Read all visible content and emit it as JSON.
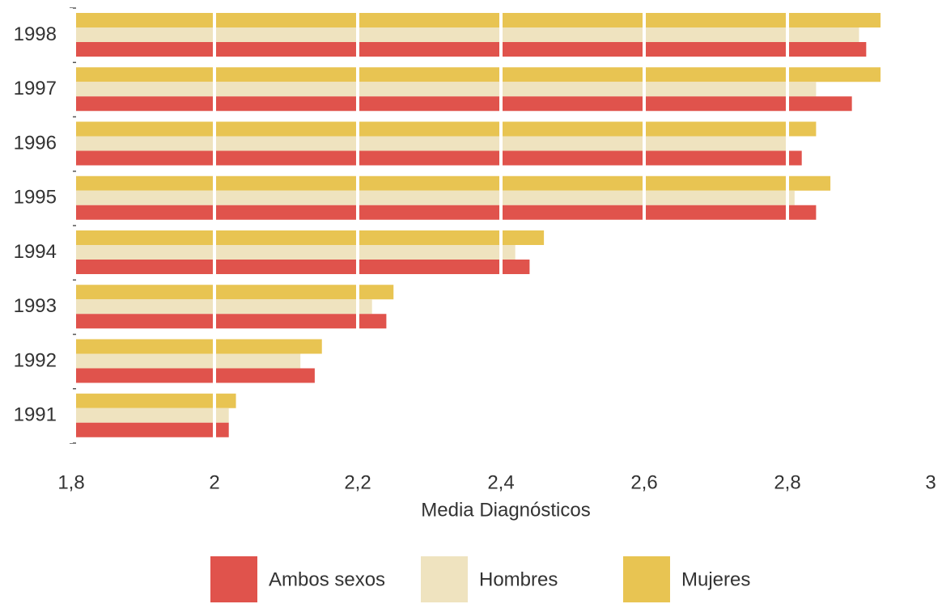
{
  "chart_data": {
    "type": "bar",
    "orientation": "horizontal",
    "x_label": "Media Diagnósticos",
    "categories": [
      "1998",
      "1997",
      "1996",
      "1995",
      "1994",
      "1993",
      "1992",
      "1991"
    ],
    "series": [
      {
        "name": "Ambos sexos",
        "color": "#e0534c",
        "values": [
          2.91,
          2.89,
          2.82,
          2.84,
          2.44,
          2.24,
          2.14,
          2.02
        ]
      },
      {
        "name": "Hombres",
        "color": "#efe3bf",
        "values": [
          2.9,
          2.84,
          2.8,
          2.81,
          2.42,
          2.22,
          2.12,
          2.02
        ]
      },
      {
        "name": "Mujeres",
        "color": "#e8c452",
        "values": [
          2.93,
          2.93,
          2.84,
          2.86,
          2.46,
          2.25,
          2.15,
          2.03
        ]
      }
    ],
    "xlim": [
      1.8,
      3
    ],
    "xticks": [
      {
        "value": 1.8,
        "label": "1,8"
      },
      2,
      {
        "value": 2.2,
        "label": "2,2"
      },
      {
        "value": 2.4,
        "label": "2,4"
      },
      {
        "value": 2.6,
        "label": "2,6"
      },
      {
        "value": 2.8,
        "label": "2,8"
      },
      3
    ],
    "grid": true,
    "legend": "bottom"
  }
}
